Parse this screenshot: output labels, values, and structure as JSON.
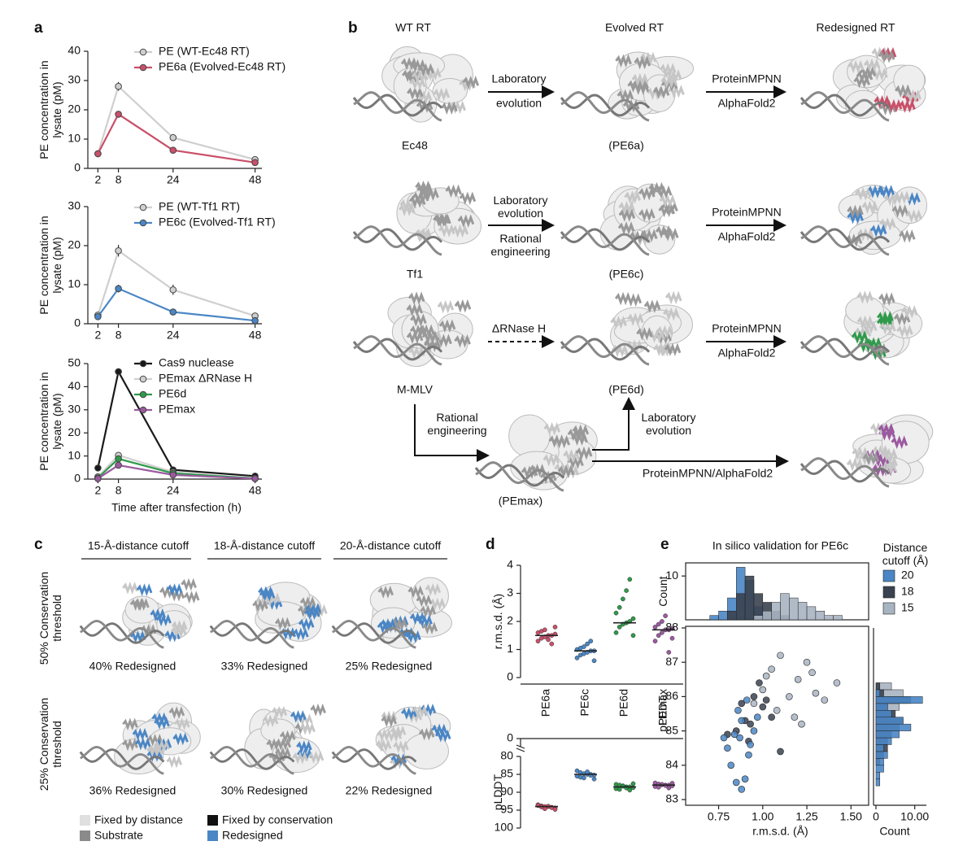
{
  "panel_labels": [
    "a",
    "b",
    "c",
    "d",
    "e"
  ],
  "chart_data": [
    {
      "type": "line",
      "ylabel": "PE concentration in lysate (pM)",
      "x": [
        2,
        8,
        24,
        48
      ],
      "xlim": [
        0,
        50
      ],
      "xticks": [
        2,
        8,
        24,
        48
      ],
      "ylim": [
        0,
        40
      ],
      "yticks": [
        0,
        10,
        20,
        30,
        40
      ],
      "series": [
        {
          "name": "PE (WT-Ec48 RT)",
          "color": "#cfcfcf",
          "values": [
            5,
            28,
            10.5,
            3
          ],
          "errors": [
            0.3,
            1.5,
            1.2,
            0.4
          ]
        },
        {
          "name": "PE6a (Evolved-Ec48 RT)",
          "color": "#c9506a",
          "values": [
            5,
            18.5,
            6.2,
            2
          ],
          "errors": [
            0.3,
            0.8,
            0.5,
            0.3
          ]
        }
      ]
    },
    {
      "type": "line",
      "ylabel": "PE concentration in lysate (pM)",
      "x": [
        2,
        8,
        24,
        48
      ],
      "xlim": [
        0,
        50
      ],
      "xticks": [
        2,
        8,
        24,
        48
      ],
      "ylim": [
        0,
        30
      ],
      "yticks": [
        0,
        10,
        20,
        30
      ],
      "series": [
        {
          "name": "PE (WT-Tf1 RT)",
          "color": "#cfcfcf",
          "values": [
            2.2,
            18.7,
            8.7,
            2
          ],
          "errors": [
            0.4,
            1.5,
            1.3,
            0.4
          ]
        },
        {
          "name": "PE6c (Evolved-Tf1 RT)",
          "color": "#4a86c5",
          "values": [
            1.8,
            9,
            3,
            0.8
          ],
          "errors": [
            0.3,
            1,
            0.8,
            0.2
          ]
        }
      ]
    },
    {
      "type": "line",
      "ylabel": "PE concentration in lysate (pM)",
      "xlabel": "Time after transfection (h)",
      "x": [
        2,
        8,
        24,
        48
      ],
      "xlim": [
        0,
        50
      ],
      "xticks": [
        2,
        8,
        24,
        48
      ],
      "ylim": [
        0,
        50
      ],
      "yticks": [
        0,
        10,
        20,
        30,
        40,
        50
      ],
      "series": [
        {
          "name": "Cas9 nuclease",
          "color": "#1a1a1a",
          "values": [
            4.8,
            46.5,
            4,
            1.3
          ],
          "errors": [
            0.3,
            1,
            0.5,
            0.2
          ]
        },
        {
          "name": "PEmax ΔRNase H",
          "color": "#d0d0d0",
          "values": [
            1,
            10.3,
            3,
            0.3
          ],
          "errors": [
            0.3,
            0.6,
            0.4,
            0.2
          ]
        },
        {
          "name": "PE6d",
          "color": "#2f9a4b",
          "values": [
            0.5,
            8.8,
            2.5,
            0.3
          ],
          "errors": [
            0.3,
            0.6,
            0.4,
            0.2
          ]
        },
        {
          "name": "PEmax",
          "color": "#9b5aa0",
          "values": [
            0.2,
            6,
            1.8,
            0.2
          ],
          "errors": [
            0.3,
            0.5,
            0.3,
            0.2
          ]
        }
      ]
    },
    {
      "type": "strip",
      "ylabel": "r.m.s.d. (Å)",
      "categories": [
        "PE6a",
        "PE6c",
        "PE6d",
        "PEmax"
      ],
      "colors": [
        "#c9506a",
        "#4a86c5",
        "#2f9a4b",
        "#9b5aa0"
      ],
      "ylim": [
        0,
        4
      ],
      "yticks": [
        0,
        1,
        2,
        3,
        4
      ],
      "values": [
        1.5,
        0.95,
        1.95,
        1.7
      ],
      "points": [
        [
          1.3,
          1.4,
          1.45,
          1.5,
          1.5,
          1.55,
          1.6,
          1.65,
          1.7,
          1.35,
          1.2,
          1.8
        ],
        [
          0.7,
          0.8,
          0.85,
          0.9,
          0.95,
          0.95,
          1.0,
          1.05,
          1.1,
          1.2,
          1.3,
          0.6
        ],
        [
          1.6,
          1.8,
          1.9,
          1.95,
          2.0,
          2.1,
          2.3,
          2.5,
          2.8,
          3.1,
          3.5,
          1.5
        ],
        [
          1.3,
          1.5,
          1.6,
          1.7,
          1.7,
          1.75,
          1.8,
          1.9,
          2.0,
          2.2,
          0.9,
          1.4
        ]
      ]
    },
    {
      "type": "strip",
      "ylabel": "pLDDT",
      "colors": [
        "#c9506a",
        "#4a86c5",
        "#2f9a4b",
        "#9b5aa0"
      ],
      "ylim": [
        100,
        80
      ],
      "yticks": [
        80,
        85,
        90,
        95,
        100
      ],
      "break_tick": 0,
      "values": [
        94,
        85,
        88.5,
        88
      ],
      "points": [
        [
          93.5,
          93.8,
          94,
          94,
          94.2,
          94.4,
          93.7,
          94.1,
          94.6,
          93.9,
          94.3,
          94.8
        ],
        [
          84,
          84.5,
          84.8,
          85,
          85,
          85.2,
          85.5,
          85.8,
          86,
          84.3,
          85.3,
          86.3
        ],
        [
          87.8,
          88,
          88.2,
          88.5,
          88.5,
          88.7,
          89,
          89.2,
          88.3,
          88.8,
          89.4,
          87.6
        ],
        [
          87.4,
          87.7,
          87.9,
          88,
          88,
          88.2,
          88.4,
          88.6,
          87.8,
          88.1,
          88.8,
          87.5
        ]
      ]
    },
    {
      "type": "histogram",
      "orientation": "vertical",
      "title": "In silico validation for PE6c",
      "ylabel": "Count",
      "legend_title": "Distance cutoff (Å)",
      "bins": [
        0.6,
        0.65,
        0.7,
        0.75,
        0.8,
        0.85,
        0.9,
        0.95,
        1.0,
        1.05,
        1.1,
        1.15,
        1.2,
        1.25,
        1.3,
        1.35,
        1.4,
        1.45
      ],
      "xlim": [
        0.6,
        1.6
      ],
      "ylim": [
        0,
        13
      ],
      "yticks": [
        10
      ],
      "series": [
        {
          "name": "20",
          "color": "#4a86c5",
          "values": [
            0,
            0,
            1,
            2,
            5,
            12,
            9,
            3,
            1,
            0,
            0,
            0,
            0,
            0,
            0,
            0,
            0
          ]
        },
        {
          "name": "18",
          "color": "#3a4250",
          "values": [
            0,
            0,
            0,
            0,
            2,
            6,
            10,
            6,
            4,
            2,
            1,
            0,
            0,
            0,
            0,
            0,
            0
          ]
        },
        {
          "name": "15",
          "color": "#a9b4c2",
          "values": [
            0,
            0,
            0,
            0,
            0,
            0,
            0,
            1,
            2,
            4,
            6,
            5,
            4,
            3,
            2,
            1,
            1
          ]
        }
      ]
    },
    {
      "type": "scatter",
      "xlabel": "r.m.s.d. (Å)",
      "ylabel": "pLDDT",
      "xlim": [
        0.6,
        1.6
      ],
      "ylim": [
        83,
        88
      ],
      "xticks": [
        0.75,
        {
          "value": 1,
          "label": "1.00"
        },
        1.25,
        {
          "value": 1.5,
          "label": "1.50"
        }
      ],
      "yticks": [
        83,
        84,
        85,
        86,
        87,
        88
      ],
      "series": [
        {
          "color": "#a9b4c2",
          "x": [
            1.0,
            1.05,
            1.1,
            1.15,
            1.2,
            1.25,
            1.3,
            1.08,
            1.18,
            1.02,
            1.28,
            1.35,
            1.42,
            0.95,
            1.22
          ],
          "values": [
            86.2,
            86.8,
            87.2,
            86.0,
            86.5,
            87.0,
            86.1,
            85.6,
            85.4,
            86.6,
            86.7,
            85.9,
            86.4,
            85.8,
            85.2
          ]
        },
        {
          "color": "#3a4250",
          "x": [
            0.85,
            0.9,
            0.95,
            1.0,
            0.92,
            1.05,
            0.98,
            0.88,
            1.1,
            0.93,
            1.02,
            0.8
          ],
          "values": [
            85.0,
            85.3,
            86.0,
            85.7,
            84.7,
            85.4,
            86.4,
            85.8,
            84.4,
            85.2,
            85.9,
            84.9
          ]
        },
        {
          "color": "#4a86c5",
          "x": [
            0.82,
            0.85,
            0.87,
            0.88,
            0.9,
            0.92,
            0.95,
            0.8,
            0.86,
            0.91,
            0.84,
            0.88,
            0.93,
            0.97,
            0.78
          ],
          "values": [
            84.0,
            83.5,
            84.8,
            85.3,
            83.6,
            84.3,
            85.0,
            84.5,
            85.6,
            85.9,
            84.9,
            83.3,
            84.6,
            85.4,
            84.8
          ]
        }
      ]
    },
    {
      "type": "histogram",
      "orientation": "horizontal",
      "xlabel": "Count",
      "bins": [
        83.4,
        83.6,
        83.8,
        84.0,
        84.2,
        84.4,
        84.6,
        84.8,
        85.0,
        85.2,
        85.4,
        85.6,
        85.8,
        86.0,
        86.2,
        86.4
      ],
      "xlim": [
        0,
        13
      ],
      "ylim": [
        83,
        88
      ],
      "xticks": [
        0,
        {
          "value": 10,
          "label": "10.00"
        }
      ],
      "series": [
        {
          "color": "#a9b4c2",
          "values": [
            0,
            0,
            0,
            0,
            0,
            0,
            0,
            1,
            2,
            2,
            4,
            6,
            8,
            7,
            4
          ]
        },
        {
          "color": "#3a4250",
          "values": [
            0,
            0,
            0,
            1,
            2,
            3,
            3,
            4,
            6,
            7,
            5,
            3,
            9,
            2,
            1
          ]
        },
        {
          "color": "#4a86c5",
          "values": [
            1,
            1,
            2,
            2,
            3,
            2,
            4,
            6,
            9,
            7,
            4,
            3,
            12,
            1,
            0
          ]
        }
      ]
    }
  ],
  "panel_b": {
    "columns": [
      "WT RT",
      "Evolved RT",
      "Redesigned RT"
    ],
    "labels": [
      "Ec48",
      "(PE6a)",
      "Tf1",
      "(PE6c)",
      "M-MLV",
      "(PE6d)",
      "(PEmax)"
    ],
    "row1": {
      "above": "Laboratory",
      "below": "evolution",
      "design_above": "ProteinMPNN",
      "design_below": "AlphaFold2"
    },
    "row2": {
      "above": "Laboratory evolution",
      "below": "Rational engineering",
      "design_above": "ProteinMPNN",
      "design_below": "AlphaFold2"
    },
    "row3": {
      "above": "ΔRNase H",
      "design_above": "ProteinMPNN",
      "design_below": "AlphaFold2"
    },
    "row4": {
      "engineering": "Rational engineering",
      "evolution": "Laboratory evolution",
      "design": "ProteinMPNN/AlphaFold2"
    }
  },
  "panel_c": {
    "columns": [
      "15-Å-distance cutoff",
      "18-Å-distance cutoff",
      "20-Å-distance cutoff"
    ],
    "rows": [
      "50% Conservation threshold",
      "25% Conservation threshold"
    ],
    "captions": [
      [
        "40% Redesigned",
        "33% Redesigned",
        "25% Redesigned"
      ],
      [
        "36% Redesigned",
        "30% Redesigned",
        "22% Redesigned"
      ]
    ],
    "legend": [
      "Fixed by distance",
      "Substrate",
      "Fixed by conservation",
      "Redesigned"
    ]
  }
}
